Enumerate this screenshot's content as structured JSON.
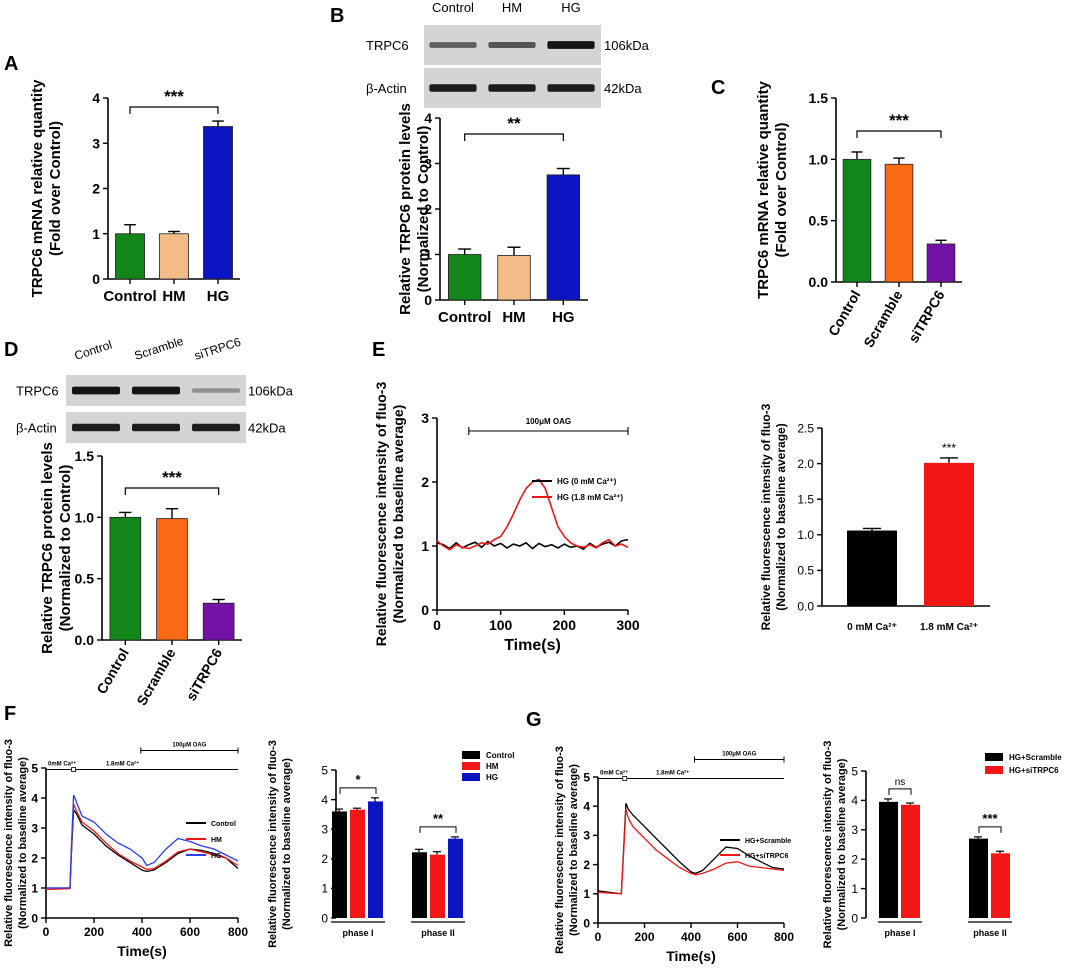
{
  "colors": {
    "green": "#13861b",
    "tan": "#f1bc87",
    "blue": "#0b16c2",
    "orange": "#fa6a12",
    "purple": "#7412a6",
    "black": "#000000",
    "red": "#f21616",
    "lineblue": "#2a3ef0"
  },
  "panels": {
    "A": "A",
    "B": "B",
    "C": "C",
    "D": "D",
    "E": "E",
    "F": "F",
    "G": "G"
  },
  "blots": {
    "B": {
      "lanes": [
        "Control",
        "HM",
        "HG"
      ],
      "rows": [
        {
          "name": "TRPC6",
          "kda": "106kDa",
          "intensity": [
            0.55,
            0.6,
            0.95
          ]
        },
        {
          "name": "β-Actin",
          "kda": "42kDa",
          "intensity": [
            0.9,
            0.9,
            0.9
          ]
        }
      ]
    },
    "D": {
      "lanes": [
        "Control",
        "Scramble",
        "siTRPC6"
      ],
      "rows": [
        {
          "name": "TRPC6",
          "kda": "106kDa",
          "intensity": [
            0.95,
            0.95,
            0.3
          ]
        },
        {
          "name": "β-Actin",
          "kda": "42kDa",
          "intensity": [
            0.9,
            0.9,
            0.9
          ]
        }
      ]
    }
  },
  "chart_data": [
    {
      "id": "A",
      "type": "bar",
      "ylabel": "TRPC6 mRNA relative quantity",
      "ylabel2": "(Fold over Control)",
      "categories": [
        "Control",
        "HM",
        "HG"
      ],
      "values": [
        1.0,
        1.0,
        3.37
      ],
      "errors": [
        0.2,
        0.05,
        0.12
      ],
      "colors": [
        "green",
        "tan",
        "blue"
      ],
      "ylim": [
        0,
        4
      ],
      "yticks": [
        "0",
        "1",
        "2",
        "3",
        "4"
      ],
      "sig": "***"
    },
    {
      "id": "B",
      "type": "bar",
      "ylabel": "Relative TRPC6 protein levels",
      "ylabel2": "(Normalized to Control)",
      "categories": [
        "Control",
        "HM",
        "HG"
      ],
      "values": [
        1.0,
        0.98,
        2.75
      ],
      "errors": [
        0.12,
        0.18,
        0.14
      ],
      "colors": [
        "green",
        "tan",
        "blue"
      ],
      "ylim": [
        0,
        4
      ],
      "yticks": [
        "0",
        "1",
        "2",
        "3",
        "4"
      ],
      "sig": "**"
    },
    {
      "id": "C",
      "type": "bar",
      "ylabel": "TRPC6 mRNA relative quantity",
      "ylabel2": "(Fold over Control)",
      "categories": [
        "Control",
        "Scramble",
        "siTRPC6"
      ],
      "values": [
        1.0,
        0.96,
        0.31
      ],
      "errors": [
        0.06,
        0.05,
        0.03
      ],
      "colors": [
        "green",
        "orange",
        "purple"
      ],
      "ylim": [
        0,
        1.5
      ],
      "yticks": [
        "0.0",
        "0.5",
        "1.0",
        "1.5"
      ],
      "sig": "***"
    },
    {
      "id": "D",
      "type": "bar",
      "ylabel": "Relative TRPC6 protein levels",
      "ylabel2": "(Normalized to Control)",
      "categories": [
        "Control",
        "Scramble",
        "siTRPC6"
      ],
      "values": [
        1.0,
        0.99,
        0.3
      ],
      "errors": [
        0.04,
        0.08,
        0.03
      ],
      "colors": [
        "green",
        "orange",
        "purple"
      ],
      "ylim": [
        0,
        1.5
      ],
      "yticks": [
        "0.0",
        "0.5",
        "1.0",
        "1.5"
      ],
      "sig": "***"
    },
    {
      "id": "E1",
      "type": "line",
      "ylabel": "Relative fluorescence intensity of fluo-3",
      "ylabel2": "(Normalized to baseline average)",
      "xlabel": "Time(s)",
      "xlim": [
        0,
        300
      ],
      "xticks": [
        "0",
        "100",
        "200",
        "300"
      ],
      "ylim": [
        0,
        3
      ],
      "yticks": [
        "0",
        "1",
        "2",
        "3"
      ],
      "treatment": "100μM OAG",
      "treatment_x": [
        50,
        300
      ],
      "series": [
        {
          "name": "HG (0 mM Ca²⁺)",
          "color": "black",
          "x": [
            0,
            10,
            20,
            30,
            40,
            50,
            60,
            70,
            80,
            90,
            100,
            110,
            120,
            130,
            140,
            150,
            160,
            170,
            180,
            190,
            200,
            210,
            220,
            230,
            240,
            250,
            260,
            270,
            280,
            290,
            300
          ],
          "y": [
            1.05,
            1.02,
            0.96,
            1.05,
            0.97,
            1.02,
            1.06,
            0.98,
            1.07,
            1.0,
            1.04,
            0.97,
            1.03,
            1.0,
            1.05,
            0.96,
            1.04,
            0.99,
            1.02,
            0.97,
            1.03,
            0.98,
            1.0,
            0.95,
            1.04,
            0.98,
            1.03,
            1.06,
            1.0,
            1.08,
            1.1
          ]
        },
        {
          "name": "HG (1.8 mM Ca²⁺)",
          "color": "red",
          "x": [
            0,
            10,
            20,
            30,
            40,
            50,
            60,
            70,
            80,
            90,
            100,
            110,
            120,
            130,
            140,
            150,
            160,
            170,
            180,
            190,
            200,
            210,
            220,
            230,
            240,
            250,
            260,
            270,
            280,
            290,
            300
          ],
          "y": [
            1.08,
            1.0,
            0.94,
            1.02,
            0.98,
            0.96,
            1.0,
            1.05,
            1.03,
            1.1,
            1.15,
            1.3,
            1.5,
            1.72,
            1.9,
            2.0,
            2.04,
            1.9,
            1.6,
            1.3,
            1.15,
            1.05,
            1.0,
            0.98,
            1.02,
            0.97,
            1.05,
            1.1,
            1.0,
            1.03,
            0.98
          ]
        }
      ]
    },
    {
      "id": "E2",
      "type": "bar",
      "ylabel": "Relative fluorescence intensity of fluo-3",
      "ylabel2": "(Normalized to baseline average)",
      "categories": [
        "0 mM Ca²⁺",
        "1.8 mM Ca²⁺"
      ],
      "values": [
        1.06,
        2.01
      ],
      "errors": [
        0.03,
        0.07
      ],
      "colors": [
        "black",
        "red"
      ],
      "ylim": [
        0,
        2.5
      ],
      "yticks": [
        "0.0",
        "0.5",
        "1.0",
        "1.5",
        "2.0",
        "2.5"
      ],
      "sig": "***"
    },
    {
      "id": "F1",
      "type": "line",
      "ylabel": "Relative fluorescence intensity of fluo-3",
      "ylabel2": "(Normalized to baseline average)",
      "xlabel": "Time(s)",
      "xlim": [
        0,
        800
      ],
      "xticks": [
        "0",
        "200",
        "400",
        "600",
        "800"
      ],
      "ylim": [
        0,
        5
      ],
      "yticks": [
        "0",
        "1",
        "2",
        "3",
        "4",
        "5"
      ],
      "ann_ca0": "0mM Ca²⁺",
      "ann_ca18": "1.8mM Ca²⁺",
      "ann_oag": "100μM OAG",
      "series": [
        {
          "name": "Control",
          "color": "black",
          "x": [
            0,
            100,
            105,
            115,
            125,
            150,
            200,
            250,
            300,
            350,
            400,
            420,
            450,
            500,
            550,
            600,
            650,
            700,
            750,
            800
          ],
          "y": [
            1.0,
            1.0,
            2.0,
            3.6,
            3.5,
            3.1,
            2.8,
            2.4,
            2.1,
            1.85,
            1.6,
            1.55,
            1.6,
            1.85,
            2.15,
            2.3,
            2.25,
            2.15,
            2.0,
            1.65
          ]
        },
        {
          "name": "HM",
          "color": "red",
          "x": [
            0,
            100,
            105,
            115,
            125,
            150,
            200,
            250,
            300,
            350,
            400,
            420,
            450,
            500,
            550,
            600,
            650,
            700,
            750,
            800
          ],
          "y": [
            0.95,
            0.98,
            2.1,
            3.8,
            3.6,
            3.2,
            2.9,
            2.5,
            2.15,
            1.9,
            1.7,
            1.62,
            1.65,
            1.9,
            2.2,
            2.3,
            2.2,
            2.1,
            2.0,
            1.75
          ]
        },
        {
          "name": "HG",
          "color": "lineblue",
          "x": [
            0,
            100,
            105,
            115,
            125,
            150,
            200,
            250,
            300,
            350,
            400,
            420,
            450,
            500,
            550,
            600,
            650,
            700,
            750,
            800
          ],
          "y": [
            1.0,
            1.0,
            2.2,
            4.1,
            3.9,
            3.4,
            3.2,
            2.8,
            2.5,
            2.3,
            2.0,
            1.75,
            1.85,
            2.3,
            2.65,
            2.55,
            2.4,
            2.3,
            2.1,
            1.9
          ]
        }
      ]
    },
    {
      "id": "F2",
      "type": "bar",
      "ylabel": "Relative fluorescence intensity of fluo-3",
      "ylabel2": "(Normalized to baseline average)",
      "categories": [
        "phase I",
        "phase II"
      ],
      "series": [
        {
          "name": "Control",
          "color": "black",
          "values": [
            3.6,
            2.22
          ],
          "errors": [
            0.08,
            0.1
          ]
        },
        {
          "name": "HM",
          "color": "red",
          "values": [
            3.66,
            2.14
          ],
          "errors": [
            0.05,
            0.1
          ]
        },
        {
          "name": "HG",
          "color": "blue",
          "values": [
            3.94,
            2.68
          ],
          "errors": [
            0.12,
            0.06
          ]
        }
      ],
      "ylim": [
        0,
        5
      ],
      "yticks": [
        "0",
        "1",
        "2",
        "3",
        "4",
        "5"
      ],
      "sig": [
        "*",
        "**"
      ]
    },
    {
      "id": "G1",
      "type": "line",
      "ylabel": "Relative fluorescence intensity of fluo-3",
      "ylabel2": "(Normalized to baseline average)",
      "xlabel": "Time(s)",
      "xlim": [
        0,
        800
      ],
      "xticks": [
        "0",
        "200",
        "400",
        "600",
        "800"
      ],
      "ylim": [
        0,
        5
      ],
      "yticks": [
        "0",
        "1",
        "2",
        "3",
        "4",
        "5"
      ],
      "ann_ca0": "0mM Ca²⁺",
      "ann_ca18": "1.8mM Ca²⁺",
      "ann_oag": "100μM OAG",
      "series": [
        {
          "name": "HG+Scramble",
          "color": "black",
          "x": [
            0,
            100,
            110,
            120,
            130,
            150,
            200,
            250,
            300,
            350,
            400,
            420,
            450,
            500,
            550,
            600,
            650,
            700,
            750,
            800
          ],
          "y": [
            1.1,
            1.0,
            2.5,
            4.1,
            3.9,
            3.7,
            3.3,
            2.9,
            2.5,
            2.1,
            1.75,
            1.7,
            1.8,
            2.2,
            2.6,
            2.55,
            2.3,
            2.1,
            1.9,
            1.85
          ]
        },
        {
          "name": "HG+siTRPC6",
          "color": "red",
          "x": [
            0,
            100,
            110,
            120,
            130,
            150,
            200,
            250,
            300,
            350,
            400,
            420,
            450,
            500,
            550,
            600,
            650,
            700,
            750,
            800
          ],
          "y": [
            1.05,
            1.0,
            2.4,
            3.9,
            3.6,
            3.3,
            2.9,
            2.5,
            2.2,
            1.9,
            1.7,
            1.65,
            1.7,
            1.85,
            2.05,
            2.1,
            1.95,
            1.9,
            1.85,
            1.8
          ]
        }
      ]
    },
    {
      "id": "G2",
      "type": "bar",
      "ylabel": "Relative fluorescence intensity of fluo-3",
      "ylabel2": "(Normalized to baseline average)",
      "categories": [
        "phase I",
        "phase II"
      ],
      "series": [
        {
          "name": "HG+Scramble",
          "color": "black",
          "values": [
            3.95,
            2.7
          ],
          "errors": [
            0.1,
            0.06
          ]
        },
        {
          "name": "HG+siTRPC6",
          "color": "red",
          "values": [
            3.85,
            2.2
          ],
          "errors": [
            0.06,
            0.07
          ]
        }
      ],
      "ylim": [
        0,
        5
      ],
      "yticks": [
        "0",
        "1",
        "2",
        "3",
        "4",
        "5"
      ],
      "sig": [
        "ns",
        "***"
      ]
    }
  ]
}
